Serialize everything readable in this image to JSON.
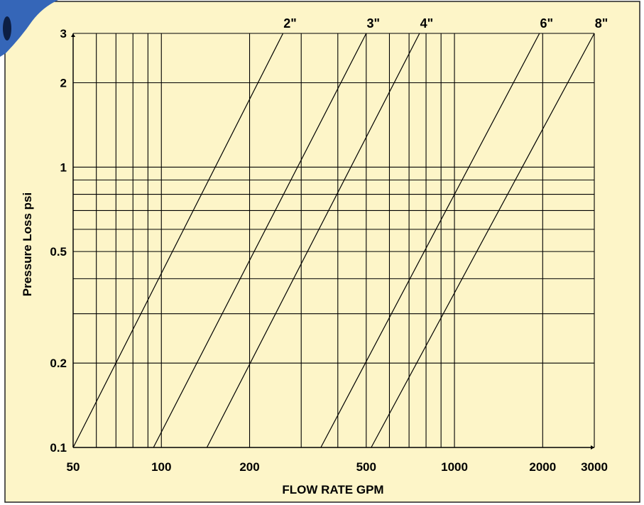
{
  "colors": {
    "panel_background": "#fdf5c8",
    "panel_border": "#222222",
    "grid_line": "#000000",
    "series_line": "#000000",
    "corner_fitting": "#3566b8"
  },
  "decoration": {
    "corner_icon": "pipe-fitting-icon"
  },
  "chart_data": {
    "type": "line",
    "title": "",
    "xlabel": "FLOW RATE GPM",
    "ylabel": "Pressure Loss psi",
    "x_scale": "log",
    "y_scale": "log",
    "xlim": [
      50,
      3000
    ],
    "ylim": [
      0.1,
      3
    ],
    "grid": true,
    "x_ticks": [
      {
        "value": 50,
        "label": "50"
      },
      {
        "value": 100,
        "label": "100"
      },
      {
        "value": 200,
        "label": "200"
      },
      {
        "value": 500,
        "label": "500"
      },
      {
        "value": 1000,
        "label": "1000"
      },
      {
        "value": 2000,
        "label": "2000"
      },
      {
        "value": 3000,
        "label": "3000"
      }
    ],
    "y_ticks": [
      {
        "value": 0.1,
        "label": "0.1"
      },
      {
        "value": 0.2,
        "label": "0.2"
      },
      {
        "value": 0.5,
        "label": "0.5"
      },
      {
        "value": 1,
        "label": "1"
      },
      {
        "value": 2,
        "label": "2"
      },
      {
        "value": 3,
        "label": "3"
      }
    ],
    "x_gridlines": [
      50,
      60,
      70,
      80,
      90,
      100,
      200,
      300,
      400,
      500,
      600,
      700,
      800,
      900,
      1000,
      2000,
      3000
    ],
    "y_gridlines": [
      0.1,
      0.2,
      0.3,
      0.4,
      0.5,
      0.6,
      0.7,
      0.8,
      0.9,
      1,
      2,
      3
    ],
    "series": [
      {
        "name": "2\"",
        "points": [
          [
            50,
            0.1
          ],
          [
            260,
            3
          ]
        ]
      },
      {
        "name": "3\"",
        "points": [
          [
            94,
            0.1
          ],
          [
            500,
            3
          ]
        ]
      },
      {
        "name": "4\"",
        "points": [
          [
            143,
            0.1
          ],
          [
            760,
            3
          ]
        ]
      },
      {
        "name": "6\"",
        "points": [
          [
            350,
            0.1
          ],
          [
            1950,
            3
          ]
        ]
      },
      {
        "name": "8\"",
        "points": [
          [
            520,
            0.1
          ],
          [
            3000,
            3
          ]
        ]
      }
    ]
  }
}
